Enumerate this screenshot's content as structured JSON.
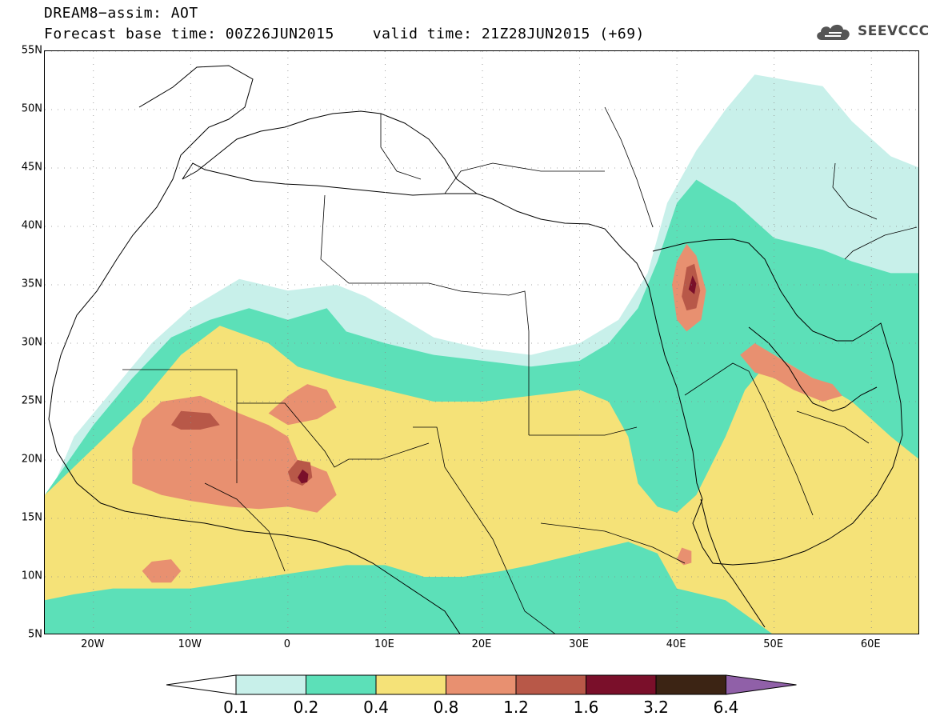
{
  "title": {
    "line1": "DREAM8−assim: AOT",
    "base_time": "Forecast base time: 00Z26JUN2015",
    "valid_time": "valid time: 21Z28JUN2015 (+69)"
  },
  "logo": {
    "text": "SEEVCCC",
    "icon": "cloud-icon"
  },
  "chart_data": {
    "type": "heatmap",
    "title": "DREAM8−assim: AOT",
    "subtitle": "Forecast base time: 00Z26JUN2015 valid time: 21Z28JUN2015 (+69)",
    "xlim": [
      -25,
      65
    ],
    "ylim": [
      5,
      55
    ],
    "grid": true,
    "x_ticks": [
      "20W",
      "10W",
      "0",
      "10E",
      "20E",
      "30E",
      "40E",
      "50E",
      "60E"
    ],
    "x_tick_values": [
      -20,
      -10,
      0,
      10,
      20,
      30,
      40,
      50,
      60
    ],
    "y_ticks": [
      "5N",
      "10N",
      "15N",
      "20N",
      "25N",
      "30N",
      "35N",
      "40N",
      "45N",
      "50N",
      "55N"
    ],
    "y_tick_values": [
      5,
      10,
      15,
      20,
      25,
      30,
      35,
      40,
      45,
      50,
      55
    ],
    "levels": [
      "0.1",
      "0.2",
      "0.4",
      "0.8",
      "1.2",
      "1.6",
      "3.2",
      "6.4"
    ],
    "colors": [
      "#c8f0ea",
      "#5ce0b8",
      "#f5e278",
      "#e89070",
      "#b85848",
      "#7a0f2a",
      "#3c2414",
      "#9060a8"
    ],
    "regions": [
      {
        "level": 1,
        "points": [
          [
            -25,
            6
          ],
          [
            -25,
            16
          ],
          [
            -22,
            22
          ],
          [
            -18,
            26
          ],
          [
            -14,
            30
          ],
          [
            -10,
            33
          ],
          [
            -5,
            35.5
          ],
          [
            0,
            34.5
          ],
          [
            5,
            35
          ],
          [
            8,
            34
          ],
          [
            12,
            32
          ],
          [
            15,
            30.5
          ],
          [
            20,
            29.5
          ],
          [
            25,
            29
          ],
          [
            30,
            30
          ],
          [
            34,
            32
          ],
          [
            37,
            36
          ],
          [
            39,
            42
          ],
          [
            42,
            46.5
          ],
          [
            45,
            50
          ],
          [
            48,
            53
          ],
          [
            55,
            52
          ],
          [
            58,
            49
          ],
          [
            62,
            46
          ],
          [
            65,
            45
          ],
          [
            65,
            5
          ],
          [
            -25,
            5
          ]
        ]
      },
      {
        "level": 2,
        "points": [
          [
            -25,
            6
          ],
          [
            -25,
            17
          ],
          [
            -20,
            23
          ],
          [
            -16,
            27
          ],
          [
            -12,
            30.5
          ],
          [
            -8,
            32
          ],
          [
            -4,
            33
          ],
          [
            0,
            32
          ],
          [
            4,
            33
          ],
          [
            6,
            31
          ],
          [
            10,
            30
          ],
          [
            15,
            29
          ],
          [
            20,
            28.5
          ],
          [
            25,
            28
          ],
          [
            30,
            28.5
          ],
          [
            33,
            30
          ],
          [
            36,
            33
          ],
          [
            38,
            37
          ],
          [
            40,
            42
          ],
          [
            42,
            44
          ],
          [
            46,
            42
          ],
          [
            50,
            39
          ],
          [
            55,
            38
          ],
          [
            58,
            37
          ],
          [
            62,
            36
          ],
          [
            65,
            36
          ],
          [
            65,
            5
          ],
          [
            -25,
            5
          ]
        ]
      },
      {
        "level": 3,
        "points": [
          [
            -25,
            8
          ],
          [
            -25,
            17
          ],
          [
            -20,
            21
          ],
          [
            -15,
            25
          ],
          [
            -11,
            29
          ],
          [
            -7,
            31.5
          ],
          [
            -2,
            30
          ],
          [
            1,
            28
          ],
          [
            5,
            27
          ],
          [
            10,
            26
          ],
          [
            15,
            25
          ],
          [
            20,
            25
          ],
          [
            25,
            25.5
          ],
          [
            30,
            26
          ],
          [
            33,
            25
          ],
          [
            35,
            22
          ],
          [
            36,
            18
          ],
          [
            38,
            16
          ],
          [
            40,
            15.5
          ],
          [
            42,
            17
          ],
          [
            45,
            22
          ],
          [
            47,
            26
          ],
          [
            50,
            29
          ],
          [
            54,
            27
          ],
          [
            58,
            25
          ],
          [
            62,
            22
          ],
          [
            65,
            20
          ],
          [
            65,
            5
          ],
          [
            50,
            5
          ],
          [
            45,
            8
          ],
          [
            40,
            9
          ],
          [
            38,
            12
          ],
          [
            35,
            13
          ],
          [
            30,
            12
          ],
          [
            25,
            11
          ],
          [
            22,
            10.5
          ],
          [
            18,
            10
          ],
          [
            14,
            10
          ],
          [
            10,
            11
          ],
          [
            6,
            11
          ],
          [
            2,
            10.5
          ],
          [
            -2,
            10
          ],
          [
            -6,
            9.5
          ],
          [
            -10,
            9
          ],
          [
            -14,
            9
          ],
          [
            -18,
            9
          ],
          [
            -22,
            8.5
          ]
        ]
      },
      {
        "level": 4,
        "points": [
          [
            -16,
            21
          ],
          [
            -15,
            23.5
          ],
          [
            -13,
            25
          ],
          [
            -9,
            25.5
          ],
          [
            -5,
            24
          ],
          [
            -2,
            23
          ],
          [
            0,
            22
          ],
          [
            1,
            20
          ],
          [
            4,
            19
          ],
          [
            5,
            17
          ],
          [
            3,
            15.5
          ],
          [
            0,
            16
          ],
          [
            -3,
            15.8
          ],
          [
            -6,
            16
          ],
          [
            -10,
            16.5
          ],
          [
            -13,
            17
          ],
          [
            -16,
            18
          ]
        ]
      },
      {
        "level": 4,
        "points": [
          [
            -2,
            24
          ],
          [
            0,
            25.5
          ],
          [
            2,
            26.5
          ],
          [
            4,
            26
          ],
          [
            5,
            24.5
          ],
          [
            3,
            23.5
          ],
          [
            0,
            23
          ]
        ]
      },
      {
        "level": 4,
        "points": [
          [
            39.5,
            35
          ],
          [
            40,
            37
          ],
          [
            41,
            38.5
          ],
          [
            42,
            37.5
          ],
          [
            43,
            34.5
          ],
          [
            42.5,
            32
          ],
          [
            41,
            31
          ],
          [
            40,
            32
          ]
        ]
      },
      {
        "level": 4,
        "points": [
          [
            46.5,
            29
          ],
          [
            48,
            30
          ],
          [
            50,
            29
          ],
          [
            52,
            28
          ],
          [
            54,
            27
          ],
          [
            56,
            26.5
          ],
          [
            57,
            25.5
          ],
          [
            55,
            25
          ],
          [
            52,
            26
          ],
          [
            50,
            27
          ],
          [
            48,
            27.5
          ]
        ]
      },
      {
        "level": 4,
        "points": [
          [
            -15,
            10.5
          ],
          [
            -14,
            11.3
          ],
          [
            -12,
            11.5
          ],
          [
            -11,
            10.5
          ],
          [
            -12,
            9.5
          ],
          [
            -14,
            9.5
          ]
        ]
      },
      {
        "level": 4,
        "points": [
          [
            40,
            11.5
          ],
          [
            40.5,
            12.5
          ],
          [
            41.5,
            12.2
          ],
          [
            41.5,
            11.2
          ],
          [
            40.7,
            11
          ]
        ]
      },
      {
        "level": 5,
        "points": [
          [
            -12,
            23
          ],
          [
            -11,
            24.2
          ],
          [
            -8,
            24
          ],
          [
            -7,
            23
          ],
          [
            -9,
            22.6
          ],
          [
            -11,
            22.6
          ]
        ]
      },
      {
        "level": 5,
        "points": [
          [
            0,
            19
          ],
          [
            1,
            20
          ],
          [
            2.3,
            19.8
          ],
          [
            2.5,
            18.5
          ],
          [
            1.5,
            17.8
          ],
          [
            0.3,
            18.2
          ]
        ]
      },
      {
        "level": 5,
        "points": [
          [
            40.5,
            34
          ],
          [
            41,
            36.5
          ],
          [
            41.8,
            36.8
          ],
          [
            42.4,
            34.5
          ],
          [
            42,
            33
          ],
          [
            41,
            32.8
          ]
        ]
      },
      {
        "level": 6,
        "points": [
          [
            1,
            18.5
          ],
          [
            1.5,
            19.2
          ],
          [
            2.1,
            18.8
          ],
          [
            2,
            18.1
          ],
          [
            1.4,
            18
          ]
        ]
      },
      {
        "level": 6,
        "points": [
          [
            41.2,
            34.6
          ],
          [
            41.6,
            35.8
          ],
          [
            42,
            35.1
          ],
          [
            41.8,
            34.2
          ]
        ]
      }
    ]
  }
}
